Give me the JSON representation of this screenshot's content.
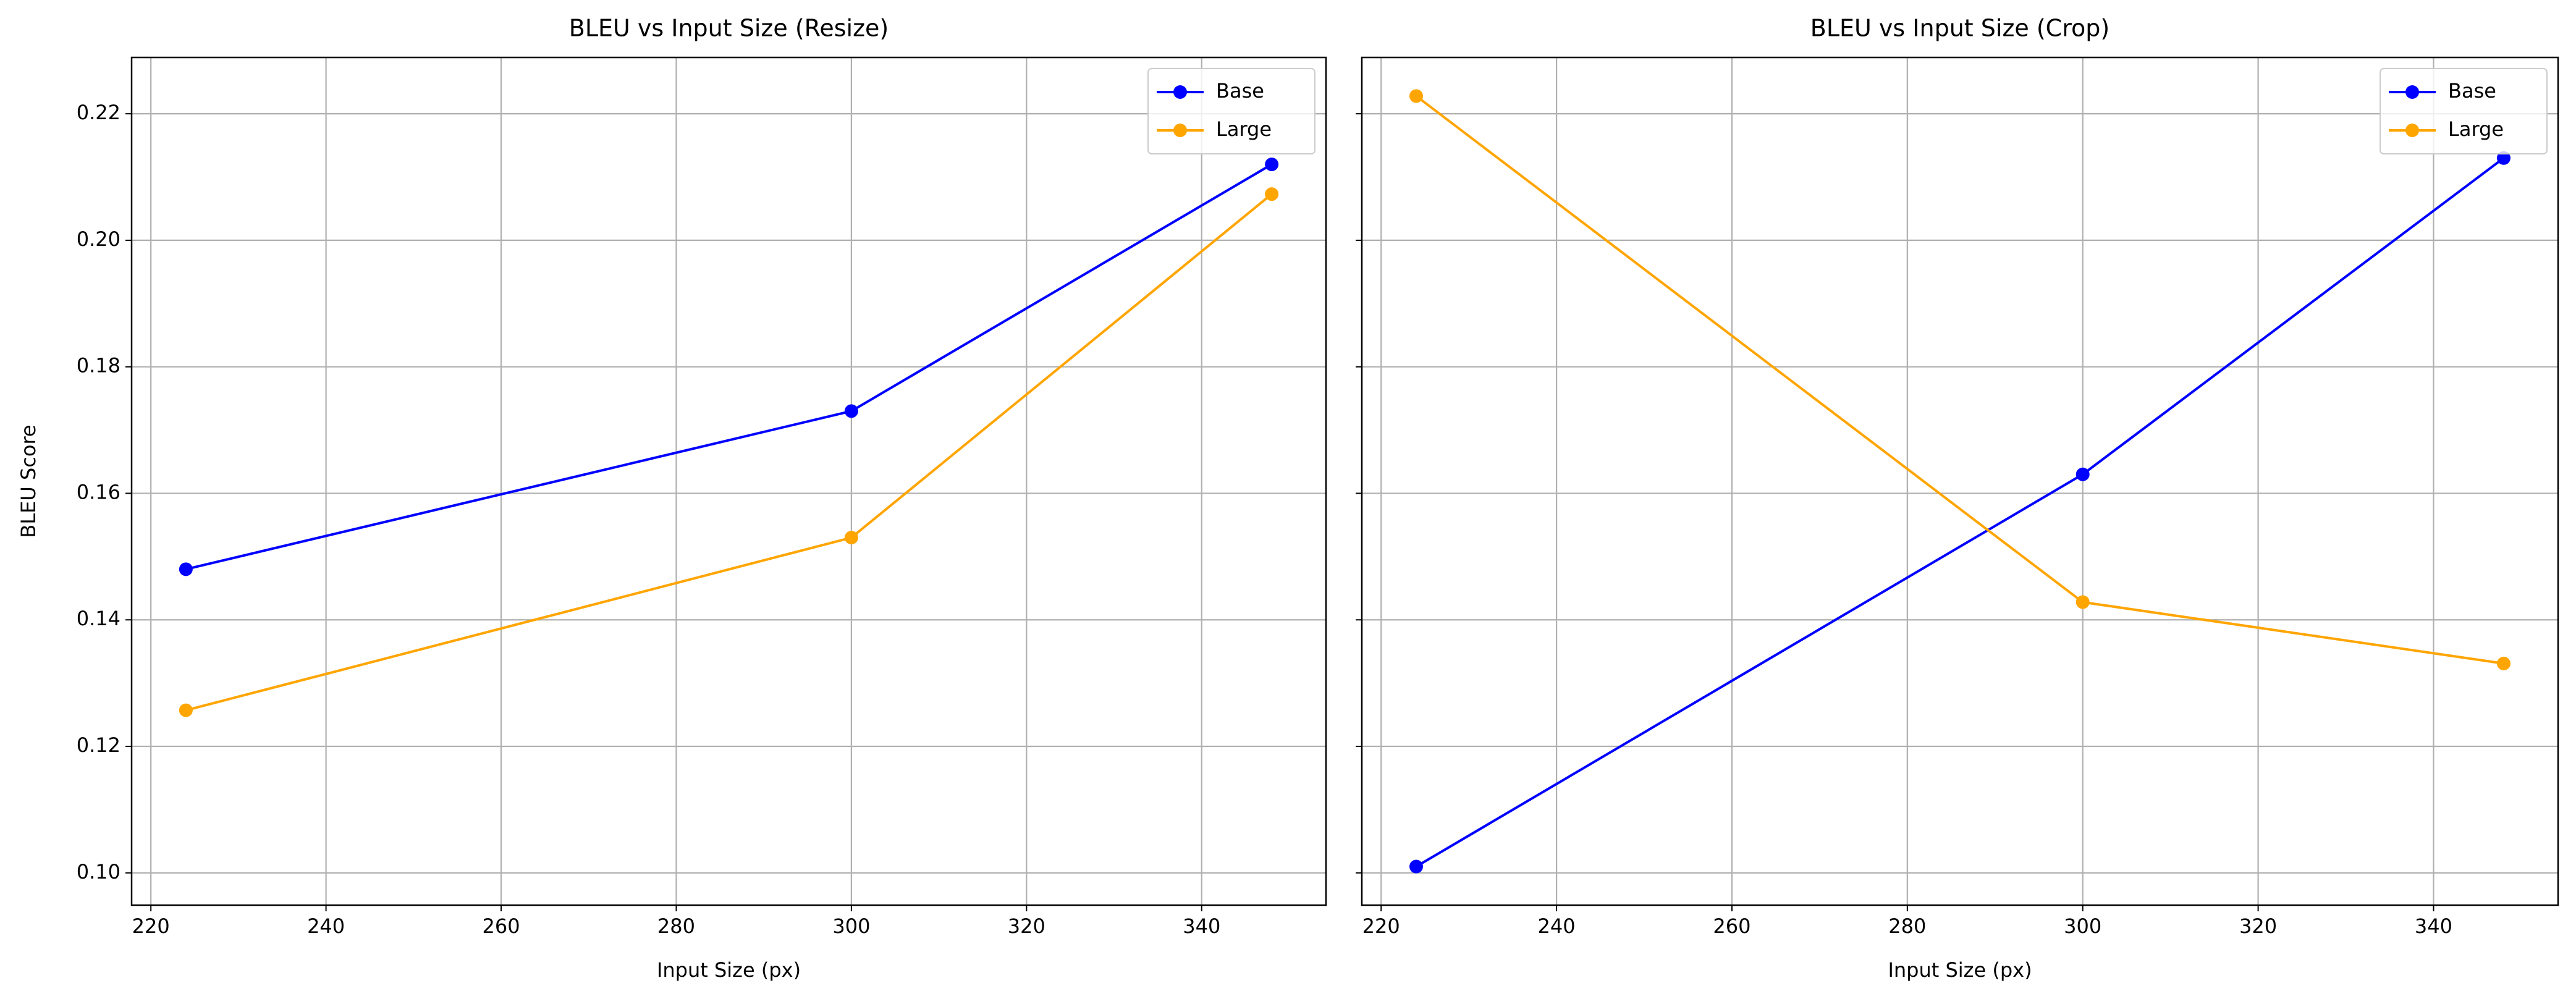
{
  "chart_data": [
    {
      "type": "line",
      "title": "BLEU vs Input Size (Resize)",
      "xlabel": "Input Size (px)",
      "ylabel": "BLEU Score",
      "x": [
        224,
        300,
        348
      ],
      "series": [
        {
          "name": "Base",
          "color": "#0000ff",
          "values": [
            0.148,
            0.173,
            0.212
          ]
        },
        {
          "name": "Large",
          "color": "#ffa500",
          "values": [
            0.1257,
            0.153,
            0.2073
          ]
        }
      ],
      "xlim": [
        217.8,
        354.2
      ],
      "xticks": [
        220,
        240,
        260,
        280,
        300,
        320,
        340
      ],
      "ylim": [
        0.0949,
        0.2289
      ],
      "yticks": [
        {
          "value": 0.1,
          "label": "0.10"
        },
        {
          "value": 0.12,
          "label": "0.12"
        },
        {
          "value": 0.14,
          "label": "0.14"
        },
        {
          "value": 0.16,
          "label": "0.16"
        },
        {
          "value": 0.18,
          "label": "0.18"
        },
        {
          "value": 0.2,
          "label": "0.20"
        },
        {
          "value": 0.22,
          "label": "0.22"
        }
      ],
      "ytick_labels": true,
      "grid": true,
      "legend": "upper right"
    },
    {
      "type": "line",
      "title": "BLEU vs Input Size (Crop)",
      "xlabel": "Input Size (px)",
      "x": [
        224,
        300,
        348
      ],
      "series": [
        {
          "name": "Base",
          "color": "#0000ff",
          "values": [
            0.101,
            0.163,
            0.213
          ]
        },
        {
          "name": "Large",
          "color": "#ffa500",
          "values": [
            0.2228,
            0.1428,
            0.1331
          ]
        }
      ],
      "xlim": [
        217.8,
        354.2
      ],
      "xticks": [
        220,
        240,
        260,
        280,
        300,
        320,
        340
      ],
      "ylim": [
        0.0949,
        0.2289
      ],
      "yticks": [
        0.1,
        0.12,
        0.14,
        0.16,
        0.18,
        0.2,
        0.22
      ],
      "ytick_labels": false,
      "grid": true,
      "legend": "upper right"
    }
  ]
}
